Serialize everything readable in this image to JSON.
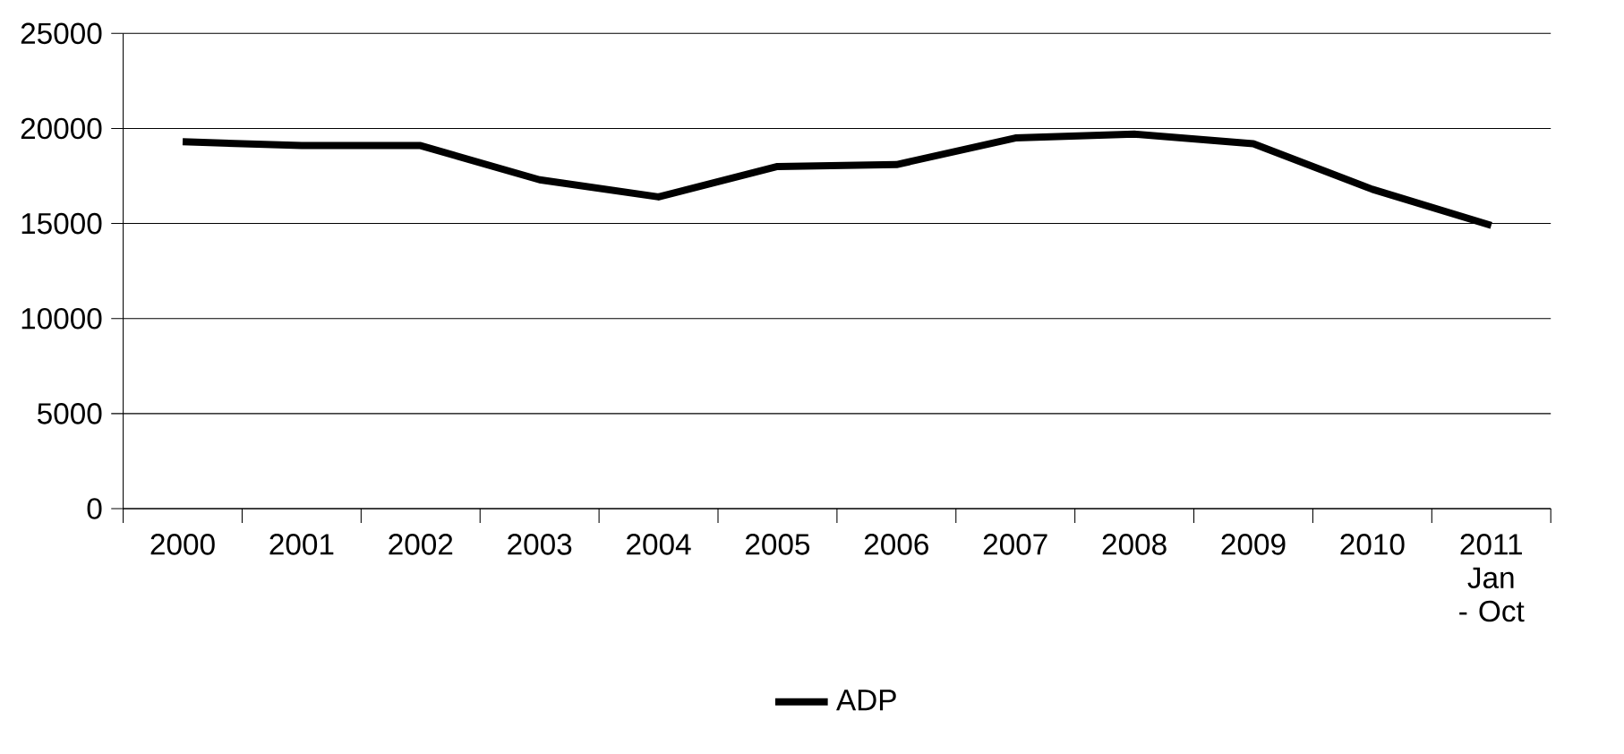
{
  "chart_data": {
    "type": "line",
    "categories": [
      "2000",
      "2001",
      "2002",
      "2003",
      "2004",
      "2005",
      "2006",
      "2007",
      "2008",
      "2009",
      "2010",
      "2011 Jan - Oct"
    ],
    "series": [
      {
        "name": "ADP",
        "color": "#000000",
        "values": [
          19300,
          19100,
          19100,
          17300,
          16400,
          18000,
          18100,
          19500,
          19700,
          19200,
          16800,
          14900
        ]
      }
    ],
    "ylim": [
      0,
      25000
    ],
    "yticks": [
      0,
      5000,
      10000,
      15000,
      20000,
      25000
    ],
    "grid": "y",
    "legend": "bottom",
    "marker": "none",
    "line_style": "solid"
  }
}
